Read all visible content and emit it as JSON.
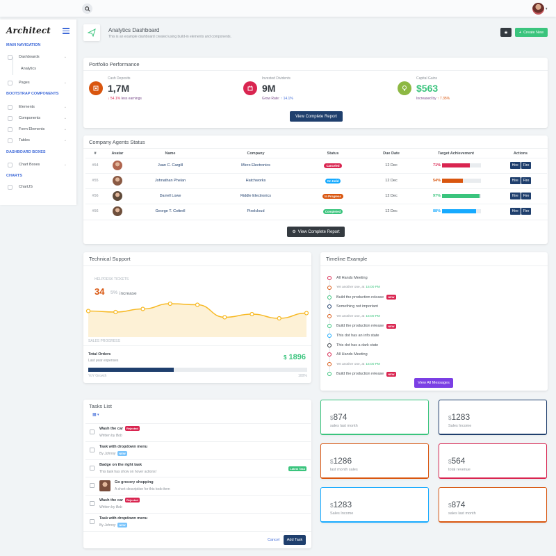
{
  "topbar": {
    "search_icon": "search-icon",
    "user_caret": "▾"
  },
  "sidebar": {
    "logo": "Architect",
    "sections": [
      {
        "title": "Main Navigation"
      },
      {
        "title": "Bootstrap Components"
      },
      {
        "title": "Dashboard Boxes"
      },
      {
        "title": "Charts"
      }
    ],
    "items": [
      {
        "label": "Dashboards"
      },
      {
        "label": "Analytics"
      },
      {
        "label": "Pages"
      },
      {
        "label": "Elements"
      },
      {
        "label": "Components"
      },
      {
        "label": "Form Elements"
      },
      {
        "label": "Tables"
      },
      {
        "label": "Chart Boxes"
      },
      {
        "label": "ChartJS"
      }
    ]
  },
  "header": {
    "title": "Analytics Dashboard",
    "subtitle": "This is an example dashboard created using build-in elements and components.",
    "star_icon": "★",
    "create_label": "Create New"
  },
  "portfolio": {
    "title": "Portfolio Performance",
    "stats": [
      {
        "label": "Cash Deposits",
        "value": "1,7M",
        "change": "54.1%",
        "change_text": "less earnings",
        "color": "#d9560f"
      },
      {
        "label": "Invested Dividents",
        "value": "9M",
        "change": "14.1%",
        "change_text": "Grow Rate:",
        "color": "#d92550"
      },
      {
        "label": "Capital Gains",
        "value": "$563",
        "change": "7.35%",
        "change_text": "Increased by",
        "color": "#3ac47d"
      }
    ],
    "button": "View Complete Report"
  },
  "agents": {
    "title": "Company Agents Status",
    "columns": [
      "#",
      "Avatar",
      "Name",
      "Company",
      "Status",
      "Due Date",
      "Target Achievement",
      "Actions"
    ],
    "rows": [
      {
        "id": "#54",
        "name": "Juan C. Cargill",
        "company": "Micro Electronics",
        "status": "Canceled",
        "status_color": "#d92550",
        "due": "12 Dec",
        "pct": "71%",
        "pct_value": 71,
        "bar_color": "#d92550"
      },
      {
        "id": "#55",
        "name": "Johnathan Phelan",
        "company": "Hatchworks",
        "status": "On Hold",
        "status_color": "#16aaff",
        "due": "12 Dec",
        "pct": "54%",
        "pct_value": 54,
        "bar_color": "#d9560f"
      },
      {
        "id": "#56",
        "name": "Darrell Lowe",
        "company": "Riddle Electronics",
        "status": "In Progress",
        "status_color": "#d9560f",
        "due": "12 Dec",
        "pct": "97%",
        "pct_value": 97,
        "bar_color": "#3ac47d"
      },
      {
        "id": "#56",
        "name": "George T. Cottrell",
        "company": "Pixelcloud",
        "status": "Completed",
        "status_color": "#3ac47d",
        "due": "12 Dec",
        "pct": "88%",
        "pct_value": 88,
        "bar_color": "#16aaff"
      }
    ],
    "hire": "Hire",
    "fire": "Fire",
    "button": "View Complete Report"
  },
  "support": {
    "title": "Technical Support",
    "section_label": "HELPDESK TICKETS",
    "big_value": "34",
    "small_value": "5%",
    "increase": "increase",
    "chart_label": "SALES PROGRESS",
    "orders_title": "Total Orders",
    "orders_sub": "Last year expenses",
    "orders_value": "1896",
    "orders_currency": "$",
    "progress_label": "YoY Growth",
    "progress_max": "100%",
    "progress_value": 0.39
  },
  "chart_data": {
    "type": "area",
    "values": [
      5.5,
      5.4,
      5.7,
      6.2,
      6.1,
      4.9,
      5.2,
      4.8,
      5.3
    ],
    "color": "#f7b924",
    "fill": "#fdf1d6"
  },
  "timeline": {
    "title": "Timeline Example",
    "items": [
      {
        "text": "All Hands Meeting",
        "color": "#d92550",
        "sub": false,
        "new": false
      },
      {
        "text": "Yet another one, at",
        "time": "15:00 PM",
        "color": "#d9560f",
        "sub": true,
        "new": false
      },
      {
        "text": "Build the production release",
        "color": "#3ac47d",
        "sub": false,
        "new": true
      },
      {
        "text": "Something not important",
        "color": "#1f3f6d",
        "sub": false,
        "new": false
      },
      {
        "text": "Yet another one, at",
        "time": "15:00 PM",
        "color": "#d9560f",
        "sub": true,
        "new": false
      },
      {
        "text": "Build the production release",
        "color": "#3ac47d",
        "sub": false,
        "new": true
      },
      {
        "text": "This dot has an info state",
        "color": "#16aaff",
        "sub": false,
        "new": false
      },
      {
        "text": "This dot has a dark state",
        "color": "#343a40",
        "sub": false,
        "new": false
      },
      {
        "text": "All Hands Meeting",
        "color": "#d92550",
        "sub": false,
        "new": false
      },
      {
        "text": "Yet another one, at",
        "time": "15:00 PM",
        "color": "#d9560f",
        "sub": true,
        "new": false
      },
      {
        "text": "Build the production release",
        "color": "#3ac47d",
        "sub": false,
        "new": true
      }
    ],
    "new_label": "NEW",
    "button": "View All Messages"
  },
  "tasks": {
    "title": "Tasks List",
    "items": [
      {
        "title": "Wash the car",
        "badge": "Rejected",
        "badge_color": "#d92550",
        "sub": "Written by",
        "author": "Bob",
        "tag": ""
      },
      {
        "title": "Task with dropdown menu",
        "badge": "",
        "sub": "By",
        "author": "Johnny",
        "tag": "NEW"
      },
      {
        "title": "Badge on the right task",
        "badge": "",
        "sub": "This task has show on hover actions!",
        "author": "",
        "tag": "",
        "right_badge": "Latest Task"
      },
      {
        "title": "Go grocery shopping",
        "badge": "",
        "sub": "A short description for this todo item",
        "author": "",
        "tag": "",
        "avatar": true
      },
      {
        "title": "Wash the car",
        "badge": "Rejected",
        "badge_color": "#d92550",
        "sub": "Written by",
        "author": "Bob",
        "tag": ""
      },
      {
        "title": "Task with dropdown menu",
        "badge": "",
        "sub": "By",
        "author": "Johnny",
        "tag": "NEW"
      }
    ],
    "cancel": "Cancel",
    "add": "Add Task"
  },
  "widgets": [
    {
      "value": "874",
      "label": "sales last month",
      "color": "#3ac47d"
    },
    {
      "value": "1283",
      "label": "Sales Income",
      "color": "#1f3f6d"
    },
    {
      "value": "1286",
      "label": "last month sales",
      "color": "#d9560f"
    },
    {
      "value": "564",
      "label": "total revenue",
      "color": "#d92550"
    },
    {
      "value": "1283",
      "label": "Sales Income",
      "color": "#16aaff"
    },
    {
      "value": "874",
      "label": "sales last month",
      "color": "#d9560f"
    }
  ],
  "currency": "$"
}
